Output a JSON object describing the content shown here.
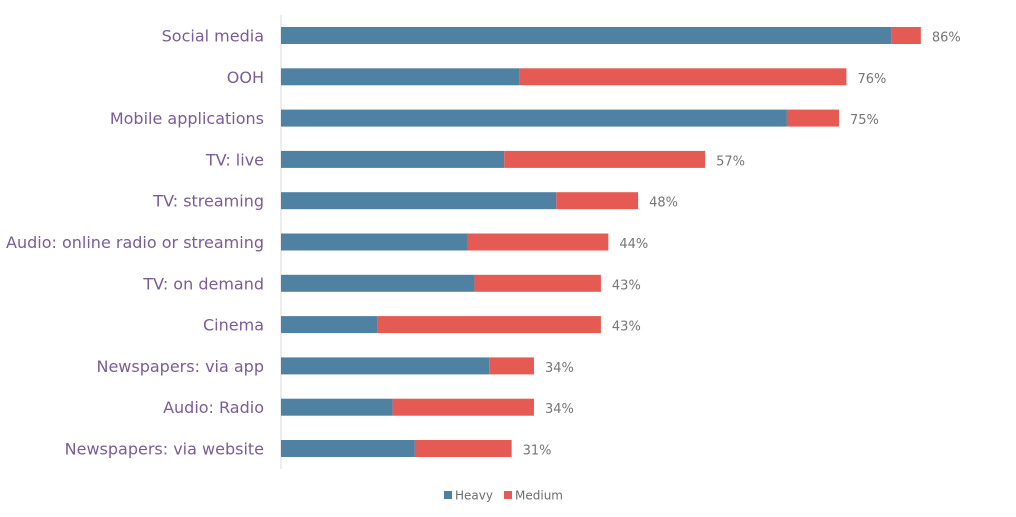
{
  "chart_data": {
    "type": "bar",
    "orientation": "horizontal",
    "stacked": true,
    "categories": [
      "Social media",
      "OOH",
      "Mobile applications",
      "TV: live",
      "TV: streaming",
      "Audio: online radio or streaming",
      "TV: on demand",
      "Cinema",
      "Newspapers: via app",
      "Audio: Radio",
      "Newspapers: via website"
    ],
    "series": [
      {
        "name": "Heavy",
        "color": "#4f81a2",
        "values": [
          82,
          32,
          68,
          30,
          37,
          25,
          26,
          13,
          28,
          15,
          18
        ]
      },
      {
        "name": "Medium",
        "color": "#e55b53",
        "values": [
          4,
          44,
          7,
          27,
          11,
          19,
          17,
          30,
          6,
          19,
          13
        ]
      }
    ],
    "totals": [
      86,
      76,
      75,
      57,
      48,
      44,
      43,
      43,
      34,
      34,
      31
    ],
    "total_labels": [
      "86%",
      "76%",
      "75%",
      "57%",
      "48%",
      "44%",
      "43%",
      "43%",
      "34%",
      "34%",
      "31%"
    ],
    "xlim": [
      0,
      100
    ],
    "grid": false,
    "legend_position": "bottom-center"
  }
}
